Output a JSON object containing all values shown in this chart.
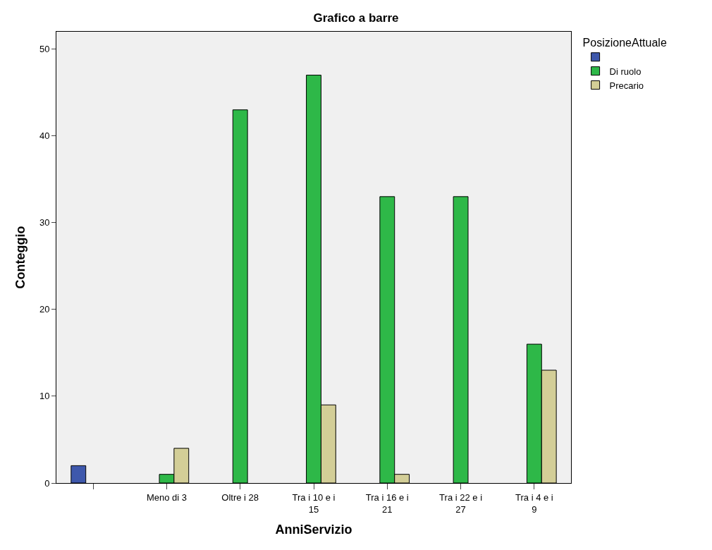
{
  "chart_data": {
    "type": "bar",
    "title": "Grafico a barre",
    "xlabel": "AnniServizio",
    "ylabel": "Conteggio",
    "legend_title": "PosizioneAttuale",
    "categories": [
      null,
      "Meno di 3",
      "Oltre i 28",
      "Tra i 10 e i 15",
      "Tra i 16 e i 21",
      "Tra i 22 e i 27",
      "Tra i 4 e i 9"
    ],
    "series": [
      {
        "color": "#3e58ac",
        "values": [
          2,
          null,
          null,
          null,
          null,
          null,
          null
        ]
      },
      {
        "name": "Di ruolo",
        "color": "#2eb848",
        "values": [
          null,
          1,
          43,
          47,
          33,
          33,
          16
        ]
      },
      {
        "name": "Precario",
        "color": "#d3ce97",
        "values": [
          null,
          4,
          null,
          9,
          1,
          null,
          13
        ]
      }
    ],
    "ylim": [
      0,
      52
    ],
    "yticks": [
      0,
      10,
      20,
      30,
      40,
      50
    ],
    "grid": false,
    "legend": "top right"
  }
}
